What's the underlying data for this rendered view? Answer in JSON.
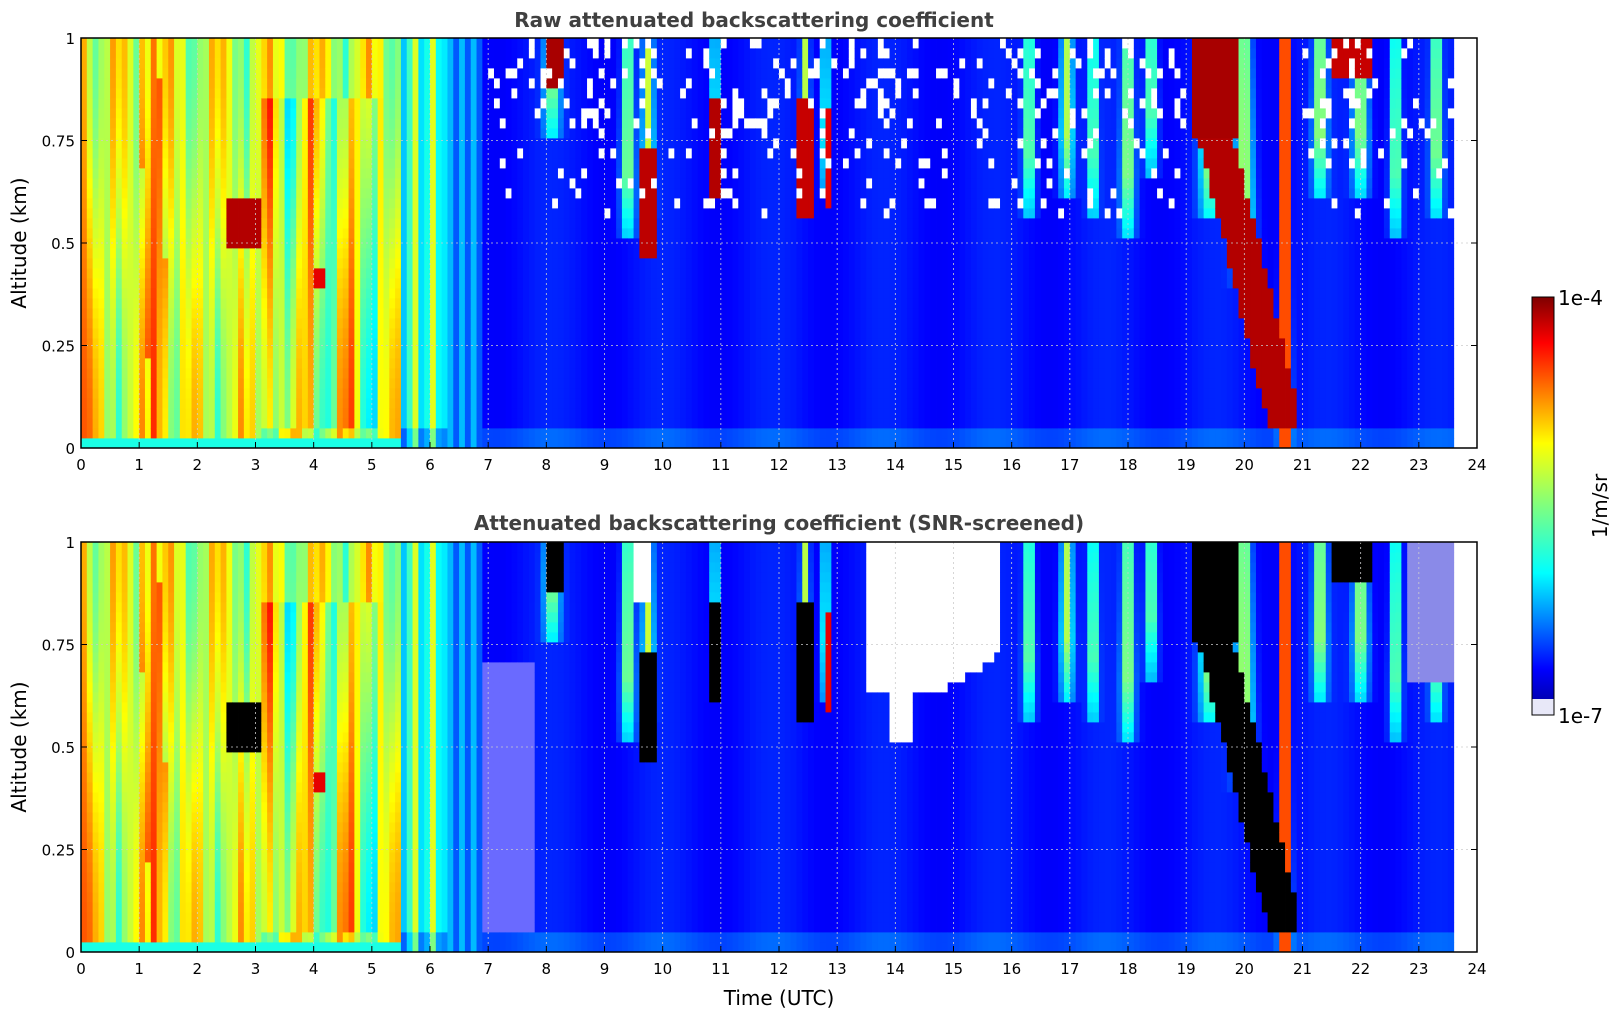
{
  "chart_data": [
    {
      "type": "heatmap",
      "title": "Raw attenuated backscattering coefficient",
      "xlabel": "",
      "ylabel": "Altitude (km)",
      "xlim": [
        0,
        24
      ],
      "ylim": [
        0,
        1
      ],
      "xticks": [
        "0",
        "1",
        "2",
        "3",
        "4",
        "5",
        "6",
        "7",
        "8",
        "9",
        "10",
        "11",
        "12",
        "13",
        "14",
        "15",
        "16",
        "17",
        "18",
        "19",
        "20",
        "21",
        "22",
        "23",
        "24"
      ],
      "yticks": [
        "0",
        "0.25",
        "0.5",
        "0.75",
        "1"
      ],
      "grid": true,
      "data_end_time": 23.6,
      "features": [
        {
          "time_start": 0.0,
          "time_end": 6.0,
          "alt_base": 0.03,
          "alt_top": 1.0,
          "level": 0.65,
          "desc": "dense aerosol/fog layer"
        },
        {
          "time_start": 2.6,
          "time_end": 3.1,
          "alt_base": 0.5,
          "alt_top": 0.6,
          "level": 0.9
        },
        {
          "time_start": 8.0,
          "time_end": 8.3,
          "alt_base": 0.9,
          "alt_top": 1.0,
          "level": 0.95
        },
        {
          "time_start": 9.6,
          "time_end": 9.9,
          "alt_base": 0.48,
          "alt_top": 0.72,
          "level": 0.92
        },
        {
          "time_start": 10.8,
          "time_end": 11.0,
          "alt_base": 0.62,
          "alt_top": 0.85,
          "level": 0.95
        },
        {
          "time_start": 12.2,
          "time_end": 12.6,
          "alt_base": 0.55,
          "alt_top": 0.85,
          "level": 0.92
        },
        {
          "time_start": 19.1,
          "time_end": 20.8,
          "alt_base": 0.05,
          "alt_top": 1.0,
          "level": 0.95
        }
      ]
    },
    {
      "type": "heatmap",
      "title": "Attenuated backscattering coefficient (SNR-screened)",
      "xlabel": "Time (UTC)",
      "ylabel": "Altitude (km)",
      "xlim": [
        0,
        24
      ],
      "ylim": [
        0,
        1
      ],
      "xticks": [
        "0",
        "1",
        "2",
        "3",
        "4",
        "5",
        "6",
        "7",
        "8",
        "9",
        "10",
        "11",
        "12",
        "13",
        "14",
        "15",
        "16",
        "17",
        "18",
        "19",
        "20",
        "21",
        "22",
        "23",
        "24"
      ],
      "yticks": [
        "0",
        "0.25",
        "0.5",
        "0.75",
        "1"
      ],
      "grid": true,
      "data_end_time": 23.6
    }
  ],
  "colorbar": {
    "label": "1/m/sr",
    "max_label": "1e-4",
    "min_label": "1e-7",
    "colormap": "jet",
    "under_color": "#e8e8f8",
    "over_color": "#000000"
  }
}
